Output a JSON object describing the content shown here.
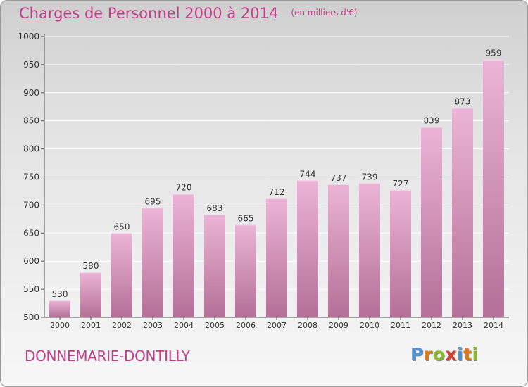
{
  "header": {
    "title": "Charges de Personnel 2000 à 2014",
    "unit": "(en milliers d'€)"
  },
  "footer": {
    "commune": "DONNEMARIE-DONTILLY",
    "logo": {
      "letters": [
        "P",
        "r",
        "o",
        "x",
        "i",
        "t",
        "i"
      ],
      "colors": [
        "#4a90d9",
        "#e07b18",
        "#8ab82d",
        "#d93a2b",
        "#4a90d9",
        "#e07b18",
        "#8ab82d"
      ]
    }
  },
  "colors": {
    "bar_light": "#ebb4d6",
    "bar_dark": "#b47098",
    "accent": "#c03e87"
  },
  "chart_data": {
    "type": "bar",
    "title": "Charges de Personnel 2000 à 2014",
    "subtitle": "(en milliers d'€)",
    "categories": [
      "2000",
      "2001",
      "2002",
      "2003",
      "2004",
      "2005",
      "2006",
      "2007",
      "2008",
      "2009",
      "2010",
      "2011",
      "2012",
      "2013",
      "2014"
    ],
    "values": [
      530,
      580,
      650,
      695,
      720,
      683,
      665,
      712,
      744,
      737,
      739,
      727,
      839,
      873,
      959
    ],
    "ylim": [
      500,
      1000
    ],
    "yticks": [
      500,
      550,
      600,
      650,
      700,
      750,
      800,
      850,
      900,
      950,
      1000
    ],
    "grid": true,
    "data_labels": true
  }
}
